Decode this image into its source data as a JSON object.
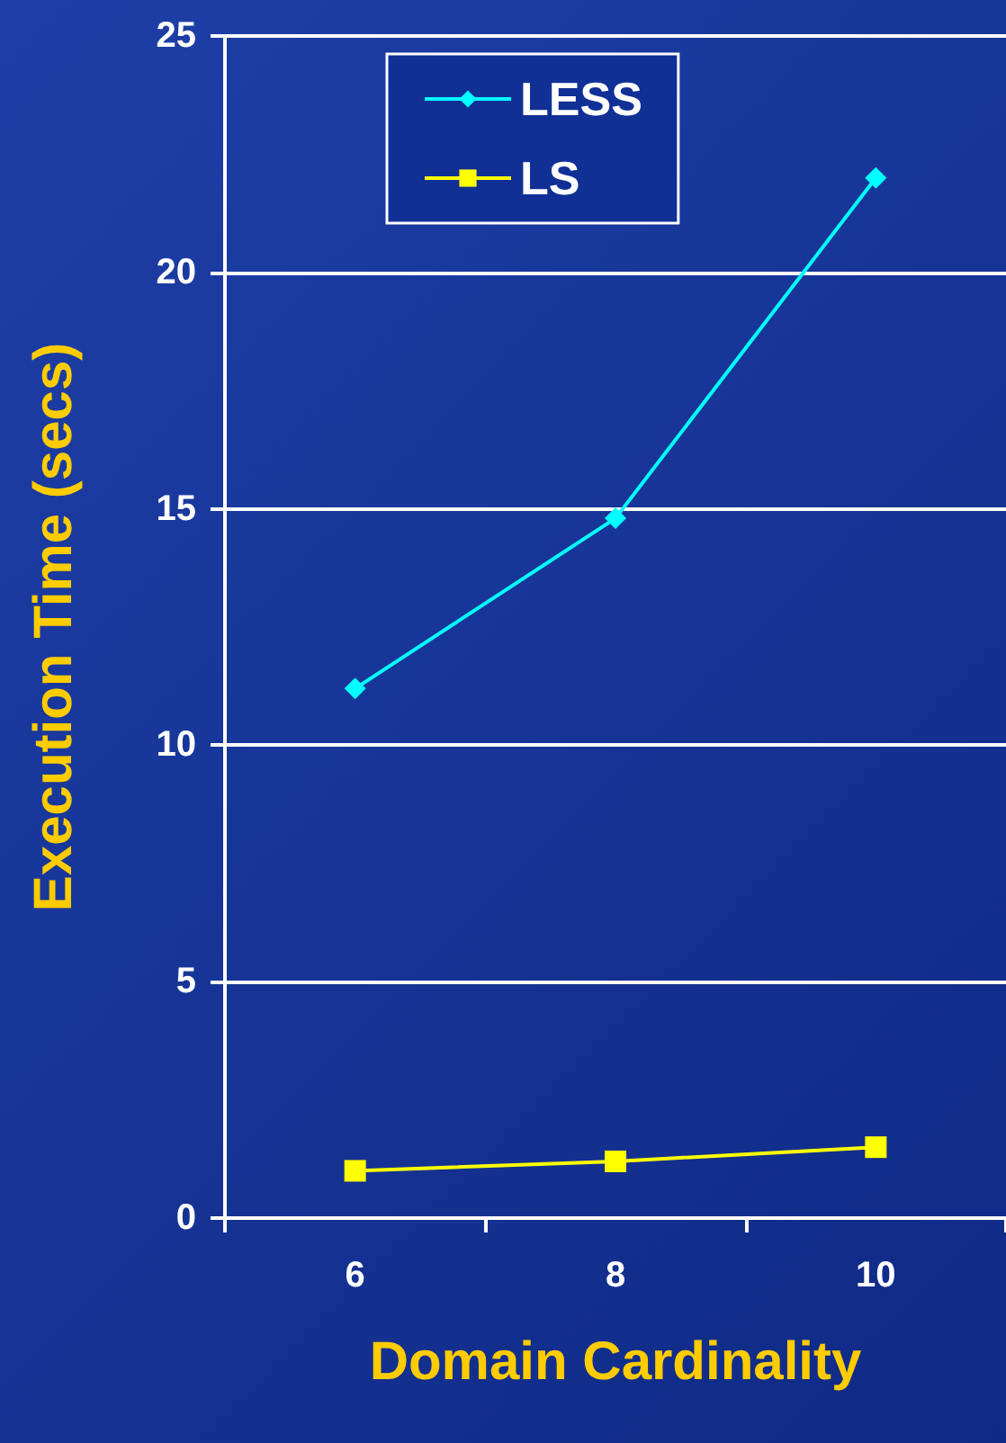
{
  "chart_data": {
    "type": "line",
    "xlabel": "Domain Cardinality",
    "ylabel": "Execution Time (secs)",
    "categories": [
      "6",
      "8",
      "10"
    ],
    "series": [
      {
        "name": "LESS",
        "color": "#00ffff",
        "marker": "diamond",
        "values": [
          11.2,
          14.8,
          22.0
        ]
      },
      {
        "name": "LS",
        "color": "#ffff00",
        "marker": "square",
        "values": [
          1.0,
          1.2,
          1.5
        ]
      }
    ],
    "ylim": [
      0,
      25
    ],
    "yticks": [
      0,
      5,
      10,
      15,
      20,
      25
    ],
    "grid": "y",
    "legend": "top"
  }
}
